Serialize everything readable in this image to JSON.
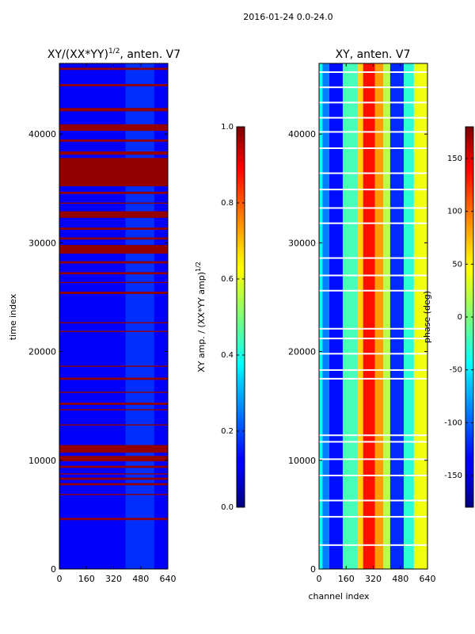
{
  "figure": {
    "suptitle": "2016-01-24 0.0-24.0"
  },
  "chart_data": [
    {
      "type": "heatmap",
      "title_base": "XY/(XX*YY)",
      "title_exp": "1/2",
      "title_suffix": ", anten. V7",
      "xlabel": "",
      "ylabel": "time index",
      "xlim": [
        0,
        640
      ],
      "ylim": [
        0,
        46500
      ],
      "xticks": [
        "0",
        "160",
        "320",
        "480",
        "640"
      ],
      "yticks": [
        "0",
        "10000",
        "20000",
        "30000",
        "40000"
      ],
      "colormap": "jet",
      "colorbar": {
        "label_base": "XY amp. / (XX*YY amp)",
        "label_exp": "1/2",
        "range": [
          0.0,
          1.0
        ],
        "ticks": [
          "0.0",
          "0.2",
          "0.4",
          "0.6",
          "0.8",
          "1.0"
        ]
      },
      "description_values": {
        "background_norm": 0.12,
        "saturated_time_bands": [
          [
            4500,
            4700
          ],
          [
            6800,
            6900
          ],
          [
            7700,
            7900
          ],
          [
            8200,
            8400
          ],
          [
            8700,
            8800
          ],
          [
            9300,
            9500
          ],
          [
            9900,
            10400
          ],
          [
            10700,
            11400
          ],
          [
            13200,
            13300
          ],
          [
            14600,
            14700
          ],
          [
            15100,
            15300
          ],
          [
            16200,
            16300
          ],
          [
            17400,
            17600
          ],
          [
            18600,
            18700
          ],
          [
            21800,
            21900
          ],
          [
            22600,
            22700
          ],
          [
            25300,
            25500
          ],
          [
            26300,
            26400
          ],
          [
            27100,
            27300
          ],
          [
            28100,
            28300
          ],
          [
            29000,
            29800
          ],
          [
            30300,
            30500
          ],
          [
            31200,
            31400
          ],
          [
            32300,
            32900
          ],
          [
            33600,
            33700
          ],
          [
            34500,
            34700
          ],
          [
            35200,
            37800
          ],
          [
            38100,
            38400
          ],
          [
            39300,
            39500
          ],
          [
            40300,
            40900
          ],
          [
            42100,
            42400
          ],
          [
            44400,
            44600
          ],
          [
            45900,
            46100
          ]
        ],
        "bright_channel_range": [
          390,
          560
        ]
      }
    },
    {
      "type": "heatmap",
      "title": "XY, anten. V7",
      "xlabel": "channel index",
      "ylabel": "",
      "xlim": [
        0,
        640
      ],
      "ylim": [
        0,
        46500
      ],
      "xticks": [
        "0",
        "160",
        "320",
        "480",
        "640"
      ],
      "yticks": [
        "0",
        "10000",
        "20000",
        "30000",
        "40000"
      ],
      "colormap": "jet",
      "colorbar": {
        "label": "phase (deg)",
        "range": [
          -180,
          180
        ],
        "ticks": [
          "-150",
          "-100",
          "-50",
          "0",
          "50",
          "100",
          "150"
        ]
      },
      "description_values": {
        "channel_profile": [
          [
            0,
            20,
            -40
          ],
          [
            20,
            60,
            -90
          ],
          [
            60,
            140,
            -130
          ],
          [
            140,
            230,
            -20
          ],
          [
            230,
            260,
            60
          ],
          [
            260,
            330,
            130
          ],
          [
            330,
            380,
            80
          ],
          [
            380,
            420,
            20
          ],
          [
            420,
            500,
            -120
          ],
          [
            500,
            560,
            -30
          ],
          [
            560,
            640,
            40
          ]
        ],
        "white_gap_rows": [
          2200,
          4800,
          6300,
          8600,
          10100,
          11700,
          12300,
          17500,
          18300,
          19800,
          21200,
          22100,
          25600,
          27000,
          28600,
          31800,
          33200,
          34900,
          36400,
          38700,
          40200,
          41500,
          42900,
          44300,
          45700
        ]
      }
    }
  ]
}
